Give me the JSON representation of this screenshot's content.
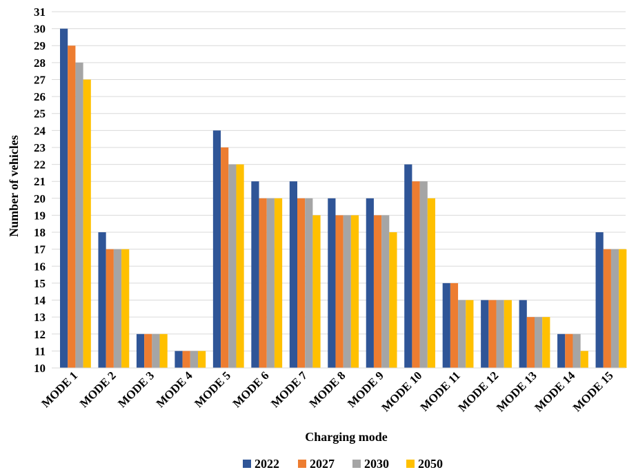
{
  "chart_data": {
    "type": "bar",
    "xlabel": "Charging mode",
    "ylabel": "Number of vehicles",
    "ylim": [
      10,
      31
    ],
    "yticks": [
      10,
      11,
      12,
      13,
      14,
      15,
      16,
      17,
      18,
      19,
      20,
      21,
      22,
      23,
      24,
      25,
      26,
      27,
      28,
      29,
      30,
      31
    ],
    "grid": true,
    "legend_position": "bottom",
    "categories": [
      "MODE 1",
      "MODE 2",
      "MODE 3",
      "MODE 4",
      "MODE 5",
      "MODE 6",
      "MODE 7",
      "MODE 8",
      "MODE 9",
      "MODE 10",
      "MODE 11",
      "MODE 12",
      "MODE 13",
      "MODE 14",
      "MODE 15"
    ],
    "series": [
      {
        "name": "2022",
        "color": "#2F5597",
        "values": [
          30,
          18,
          12,
          11,
          24,
          21,
          21,
          20,
          20,
          22,
          15,
          14,
          14,
          12,
          18
        ]
      },
      {
        "name": "2027",
        "color": "#ED7D31",
        "values": [
          29,
          17,
          12,
          11,
          23,
          20,
          20,
          19,
          19,
          21,
          15,
          14,
          13,
          12,
          17
        ]
      },
      {
        "name": "2030",
        "color": "#A5A5A5",
        "values": [
          28,
          17,
          12,
          11,
          22,
          20,
          20,
          19,
          19,
          21,
          14,
          14,
          13,
          12,
          17
        ]
      },
      {
        "name": "2050",
        "color": "#FFC000",
        "values": [
          27,
          17,
          12,
          11,
          22,
          20,
          19,
          19,
          18,
          20,
          14,
          14,
          13,
          11,
          17
        ]
      }
    ]
  }
}
